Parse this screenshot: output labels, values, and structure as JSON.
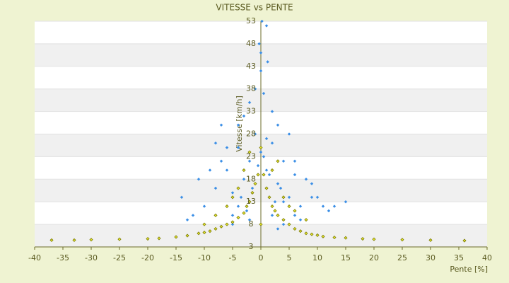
{
  "chart_data": {
    "type": "scatter",
    "title": "VITESSE vs PENTE",
    "x_label": "Pente [%]",
    "y_label": "Vitesse [km/h]",
    "xlim": [
      -40,
      40
    ],
    "xticks": [
      -40,
      -35,
      -30,
      -25,
      -20,
      -15,
      -10,
      -5,
      0,
      5,
      10,
      15,
      20,
      25,
      30,
      35,
      40
    ],
    "ylim": [
      3,
      53
    ],
    "yticks": [
      3,
      8,
      13,
      18,
      23,
      28,
      33,
      38,
      43,
      48,
      53
    ],
    "grid": true,
    "series": [
      {
        "color": "#3a8ee6",
        "x": [
          -6,
          -5,
          -4,
          -3,
          -2,
          -1,
          0,
          1,
          2,
          3,
          4,
          5,
          6,
          -8,
          -7,
          7,
          8,
          -10,
          10,
          -12,
          12,
          -3,
          3,
          -2,
          2,
          -1,
          1,
          0,
          0,
          -4,
          4,
          -5,
          5,
          -6,
          6,
          -9,
          9,
          -11,
          11,
          -13,
          13,
          -1.5,
          1.5,
          -0.5,
          0.5,
          2.5,
          -2.5,
          3.5,
          -3.5,
          0.2,
          -0.3,
          1.2,
          -7,
          -8,
          6,
          9,
          -4,
          4,
          -2,
          2,
          15,
          -14,
          0.5,
          3,
          -5,
          7,
          1
        ],
        "values": [
          20,
          15,
          25,
          18,
          22,
          28,
          24,
          20,
          26,
          17,
          22,
          14,
          19,
          16,
          22,
          12,
          18,
          12,
          14,
          10,
          11,
          32,
          30,
          35,
          33,
          38,
          27,
          42,
          46,
          12,
          13,
          10,
          28,
          25,
          10,
          20,
          14,
          18,
          12,
          9,
          12,
          16,
          19,
          21,
          23,
          13,
          11,
          16,
          14,
          53,
          48,
          44,
          30,
          26,
          22,
          17,
          30,
          8,
          9,
          10,
          13,
          14,
          37,
          7,
          8,
          9,
          52
        ]
      },
      {
        "color": "#7a7a00",
        "x": [
          -37,
          -33,
          -30,
          -25,
          -20,
          -18,
          -15,
          -13,
          -11,
          -10,
          -9,
          -8,
          -7,
          -6,
          -5,
          -4,
          -3,
          -2.5,
          -2,
          -1.5,
          -1,
          -0.5,
          0,
          0.5,
          1,
          1.5,
          2,
          2.5,
          3,
          4,
          5,
          6,
          7,
          8,
          9,
          10,
          11,
          13,
          15,
          18,
          20,
          25,
          30,
          36,
          -5,
          -4,
          -3,
          -6,
          4,
          5,
          6,
          8,
          -8,
          -10,
          3,
          -2,
          2,
          0
        ],
        "values": [
          4.5,
          4.5,
          4.6,
          4.7,
          4.8,
          4.9,
          5.2,
          5.5,
          6,
          6.2,
          6.5,
          7,
          7.5,
          8,
          8.5,
          9.5,
          10.5,
          12,
          13,
          15,
          17,
          19,
          8,
          19,
          16,
          14,
          12,
          11,
          10,
          9,
          8,
          7,
          6.5,
          6,
          5.8,
          5.6,
          5.3,
          5.1,
          5,
          4.8,
          4.7,
          4.6,
          4.5,
          4.4,
          14,
          16,
          20,
          12,
          14,
          12,
          11,
          9,
          10,
          8,
          22,
          24,
          20,
          25
        ]
      }
    ]
  }
}
